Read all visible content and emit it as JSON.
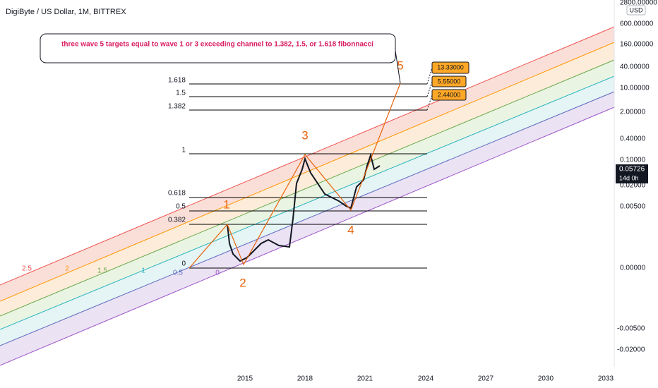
{
  "header": {
    "title": "DigiByte / US Dollar, 1M, BITTREX"
  },
  "price_axis": {
    "currency": "USD",
    "labels": [
      "2800.00000",
      "600.00000",
      "160.00000",
      "40.00000",
      "10.00000",
      "2.00000",
      "0.40000",
      "0.10000",
      "0.02000",
      "0.00500",
      "0.00000",
      "-0.00500",
      "-0.02000"
    ],
    "last_price": "0.05726",
    "countdown": "14d 0h"
  },
  "time_axis": {
    "labels": [
      "2015",
      "2018",
      "2021",
      "2024",
      "2027",
      "2030",
      "2033"
    ]
  },
  "fib_levels": [
    "1.618",
    "1.5",
    "1.382",
    "1",
    "0.618",
    "0.5",
    "0.382",
    "0"
  ],
  "channel_labels": [
    "2.5",
    "2",
    "1.5",
    "1",
    "0.5",
    "0"
  ],
  "waves": [
    "1",
    "2",
    "3",
    "4",
    "5"
  ],
  "annotation": "three wave 5 targets equal to wave 1 or 3 exceeding channel to 1.382, 1.5, or 1.618 fibonnacci",
  "targets": [
    "13.33000",
    "5.55000",
    "2.44000"
  ]
}
